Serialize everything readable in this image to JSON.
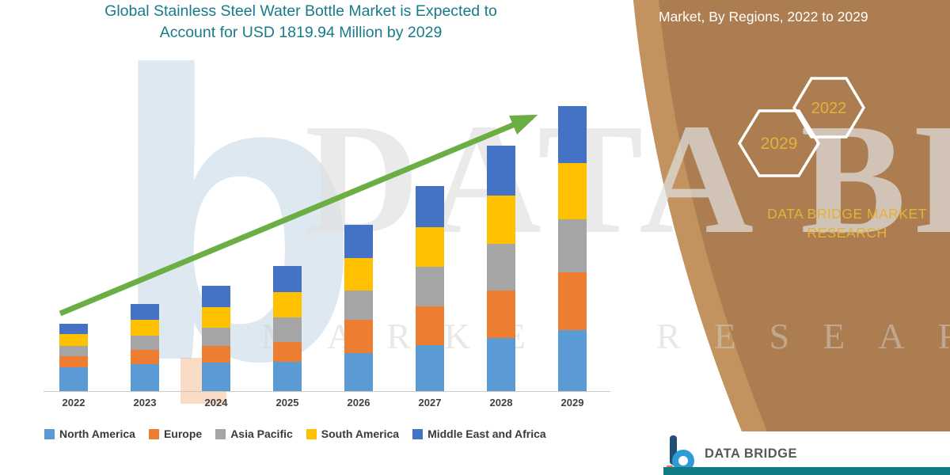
{
  "title": {
    "line1": "Global Stainless Steel Water Bottle Market is Expected to",
    "line2": "Account for USD 1819.94 Million by 2029"
  },
  "header": {
    "region_label": "Market, By Regions, 2022 to 2029"
  },
  "side_panel": {
    "hex_top": "2022",
    "hex_bottom": "2029",
    "brand_line1": "DATA BRIDGE MARKET",
    "brand_line2": "RESEARCH"
  },
  "watermark": {
    "main": "DATA BRIDGE",
    "sub": "MARKET RESEARCH",
    "letter_b": "b"
  },
  "footer": {
    "brand": "DATA BRIDGE"
  },
  "colors": {
    "title_teal": "#177B8A",
    "panel_brown": "#AC7D50",
    "panel_brown_light": "#C2935E",
    "gold": "#E2B23B",
    "arrow_green": "#6BAE44",
    "footer_teal": "#0E7B86"
  },
  "legend": [
    {
      "label": "North America",
      "color": "#5B9BD5"
    },
    {
      "label": "Europe",
      "color": "#ED7D31"
    },
    {
      "label": "Asia Pacific",
      "color": "#A5A5A5"
    },
    {
      "label": "South America",
      "color": "#FFC000"
    },
    {
      "label": "Middle East and Africa",
      "color": "#4472C4"
    }
  ],
  "chart_data": {
    "type": "bar",
    "stacked": true,
    "unit": "USD Million",
    "title": "Global Stainless Steel Water Bottle Market is Expected to Account for USD 1819.94 Million by 2029",
    "categories": [
      "2022",
      "2023",
      "2024",
      "2025",
      "2026",
      "2027",
      "2028",
      "2029"
    ],
    "series": [
      {
        "name": "North America",
        "color": "#5B9BD5",
        "values": [
          150,
          170,
          180,
          187,
          242,
          293,
          338,
          390
        ]
      },
      {
        "name": "Europe",
        "color": "#ED7D31",
        "values": [
          75,
          93,
          110,
          126,
          212,
          247,
          303,
          369
        ]
      },
      {
        "name": "Asia Pacific",
        "color": "#A5A5A5",
        "values": [
          65,
          93,
          115,
          158,
          190,
          252,
          300,
          339
        ]
      },
      {
        "name": "South America",
        "color": "#FFC000",
        "values": [
          72,
          99,
          130,
          160,
          205,
          255,
          310,
          360
        ]
      },
      {
        "name": "Middle East and Africa",
        "color": "#4472C4",
        "values": [
          68,
          101,
          137,
          167,
          212,
          262,
          316,
          361.94
        ]
      }
    ],
    "ylim": [
      0,
      1900
    ],
    "xlabel": "",
    "ylabel": "",
    "grid": false,
    "legend_position": "bottom",
    "annotations": [
      "upward green trend arrow from 2022 bar to 2029 bar"
    ]
  }
}
